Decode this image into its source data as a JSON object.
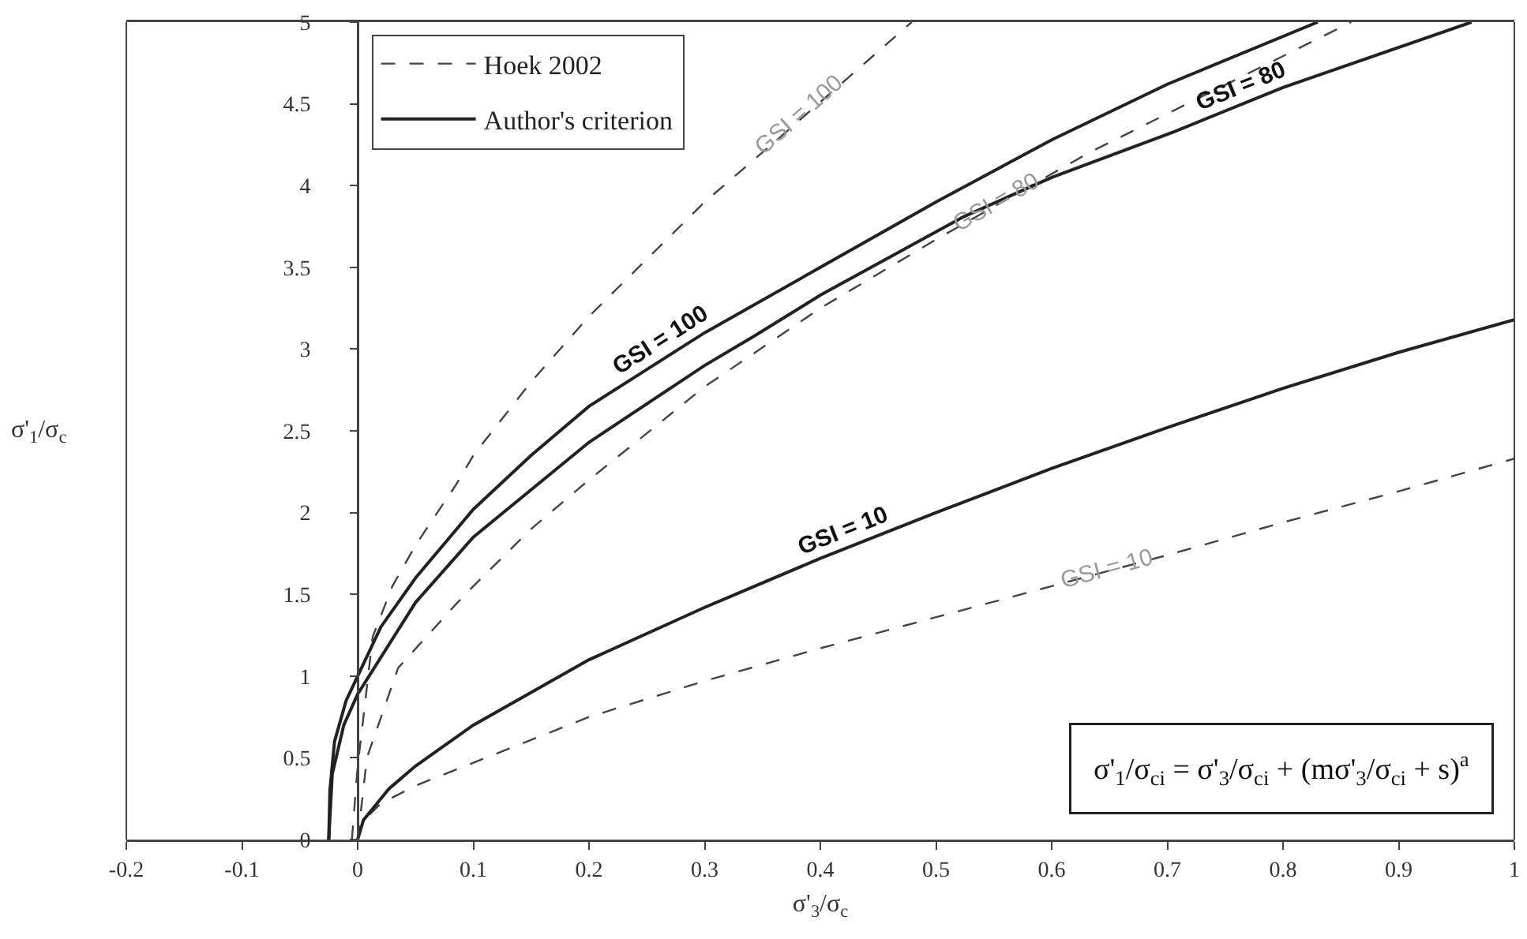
{
  "chart_data": {
    "type": "line",
    "xlabel": "σ'$_{3}$/σ$_{c}$",
    "ylabel": "σ'$_{1}$/σ$_{c}$",
    "xlim": [
      -0.2,
      1
    ],
    "xticks": [
      -0.2,
      -0.1,
      0,
      0.1,
      0.2,
      0.3,
      0.4,
      0.5,
      0.6,
      0.7,
      0.8,
      0.9,
      1
    ],
    "ylim": [
      0,
      5
    ],
    "yticks": [
      0,
      0.5,
      1,
      1.5,
      2,
      2.5,
      3,
      3.5,
      4,
      4.5,
      5
    ],
    "grid": false,
    "legend": "top left",
    "marker": "none",
    "series": [
      {
        "name": "Hoek 2002",
        "color": "#444444",
        "line_style": "dashed",
        "x": [
          -0.005,
          0,
          0.005,
          0.013,
          0.03,
          0.05,
          0.085,
          0.1,
          0.15,
          0.2,
          0.3,
          0.361,
          0.479
        ],
        "values": [
          0,
          0.45,
          0.75,
          1.24,
          1.55,
          1.8,
          2.17,
          2.35,
          2.8,
          3.2,
          3.9,
          4.27,
          5.0
        ]
      },
      {
        "color": "#444444",
        "line_style": "dashed",
        "x": [
          0,
          0.008,
          0.035,
          0.085,
          0.1,
          0.15,
          0.2,
          0.3,
          0.4,
          0.5,
          0.632,
          0.859
        ],
        "values": [
          0,
          0.5,
          1.05,
          1.44,
          1.55,
          1.9,
          2.2,
          2.77,
          3.25,
          3.67,
          4.2,
          5.0
        ]
      },
      {
        "color": "#444444",
        "line_style": "dashed",
        "x": [
          0,
          0.004,
          0.02,
          0.05,
          0.1,
          0.2,
          0.3,
          0.4,
          0.5,
          0.6,
          0.7,
          0.8,
          0.9,
          1.0
        ],
        "values": [
          0,
          0.11,
          0.22,
          0.33,
          0.47,
          0.75,
          0.97,
          1.17,
          1.36,
          1.55,
          1.74,
          1.94,
          2.13,
          2.33
        ]
      },
      {
        "name": "Author's criterion",
        "color": "#222222",
        "line_style": "solid",
        "x": [
          -0.025,
          -0.024,
          -0.02,
          -0.01,
          0,
          0.02,
          0.05,
          0.1,
          0.15,
          0.2,
          0.3,
          0.4,
          0.5,
          0.6,
          0.7,
          0.83
        ],
        "values": [
          0,
          0.3,
          0.6,
          0.85,
          1.0,
          1.3,
          1.6,
          2.02,
          2.35,
          2.65,
          3.1,
          3.5,
          3.9,
          4.28,
          4.62,
          5.0
        ]
      },
      {
        "color": "#222222",
        "line_style": "solid",
        "x": [
          -0.025,
          -0.022,
          -0.012,
          0,
          0.05,
          0.1,
          0.2,
          0.3,
          0.343,
          0.4,
          0.524,
          0.6,
          0.706,
          0.8,
          0.963
        ],
        "values": [
          0,
          0.4,
          0.7,
          0.89,
          1.45,
          1.85,
          2.43,
          2.9,
          3.08,
          3.33,
          3.81,
          4.05,
          4.33,
          4.6,
          5.0
        ]
      },
      {
        "color": "#222222",
        "line_style": "solid",
        "x": [
          0,
          0.005,
          0.027,
          0.05,
          0.1,
          0.2,
          0.3,
          0.4,
          0.5,
          0.6,
          0.7,
          0.8,
          0.9,
          1.0
        ],
        "values": [
          0,
          0.12,
          0.31,
          0.45,
          0.7,
          1.1,
          1.42,
          1.72,
          2.0,
          2.27,
          2.52,
          2.76,
          2.98,
          3.18
        ]
      }
    ],
    "annotations": [
      {
        "text": "GSI = 100",
        "x": 0.384,
        "y": 4.42
      },
      {
        "text": "GSI = 80",
        "x": 0.553,
        "y": 3.88
      },
      {
        "text": "GSI = 10",
        "x": 0.649,
        "y": 1.64
      },
      {
        "text": "GSI = 100",
        "x": 0.27,
        "y": 2.97
      },
      {
        "text": "GSI = 80",
        "x": 0.77,
        "y": 4.51
      },
      {
        "text": "GSI = 10",
        "x": 0.425,
        "y": 1.79
      },
      "σ'$_{1}$/σ$_{ci}$ = σ'$_{3}$/σ$_{ci}$ + (mσ'$_{3}$/σ$_{ci}$ + s)$^{a}$"
    ]
  }
}
